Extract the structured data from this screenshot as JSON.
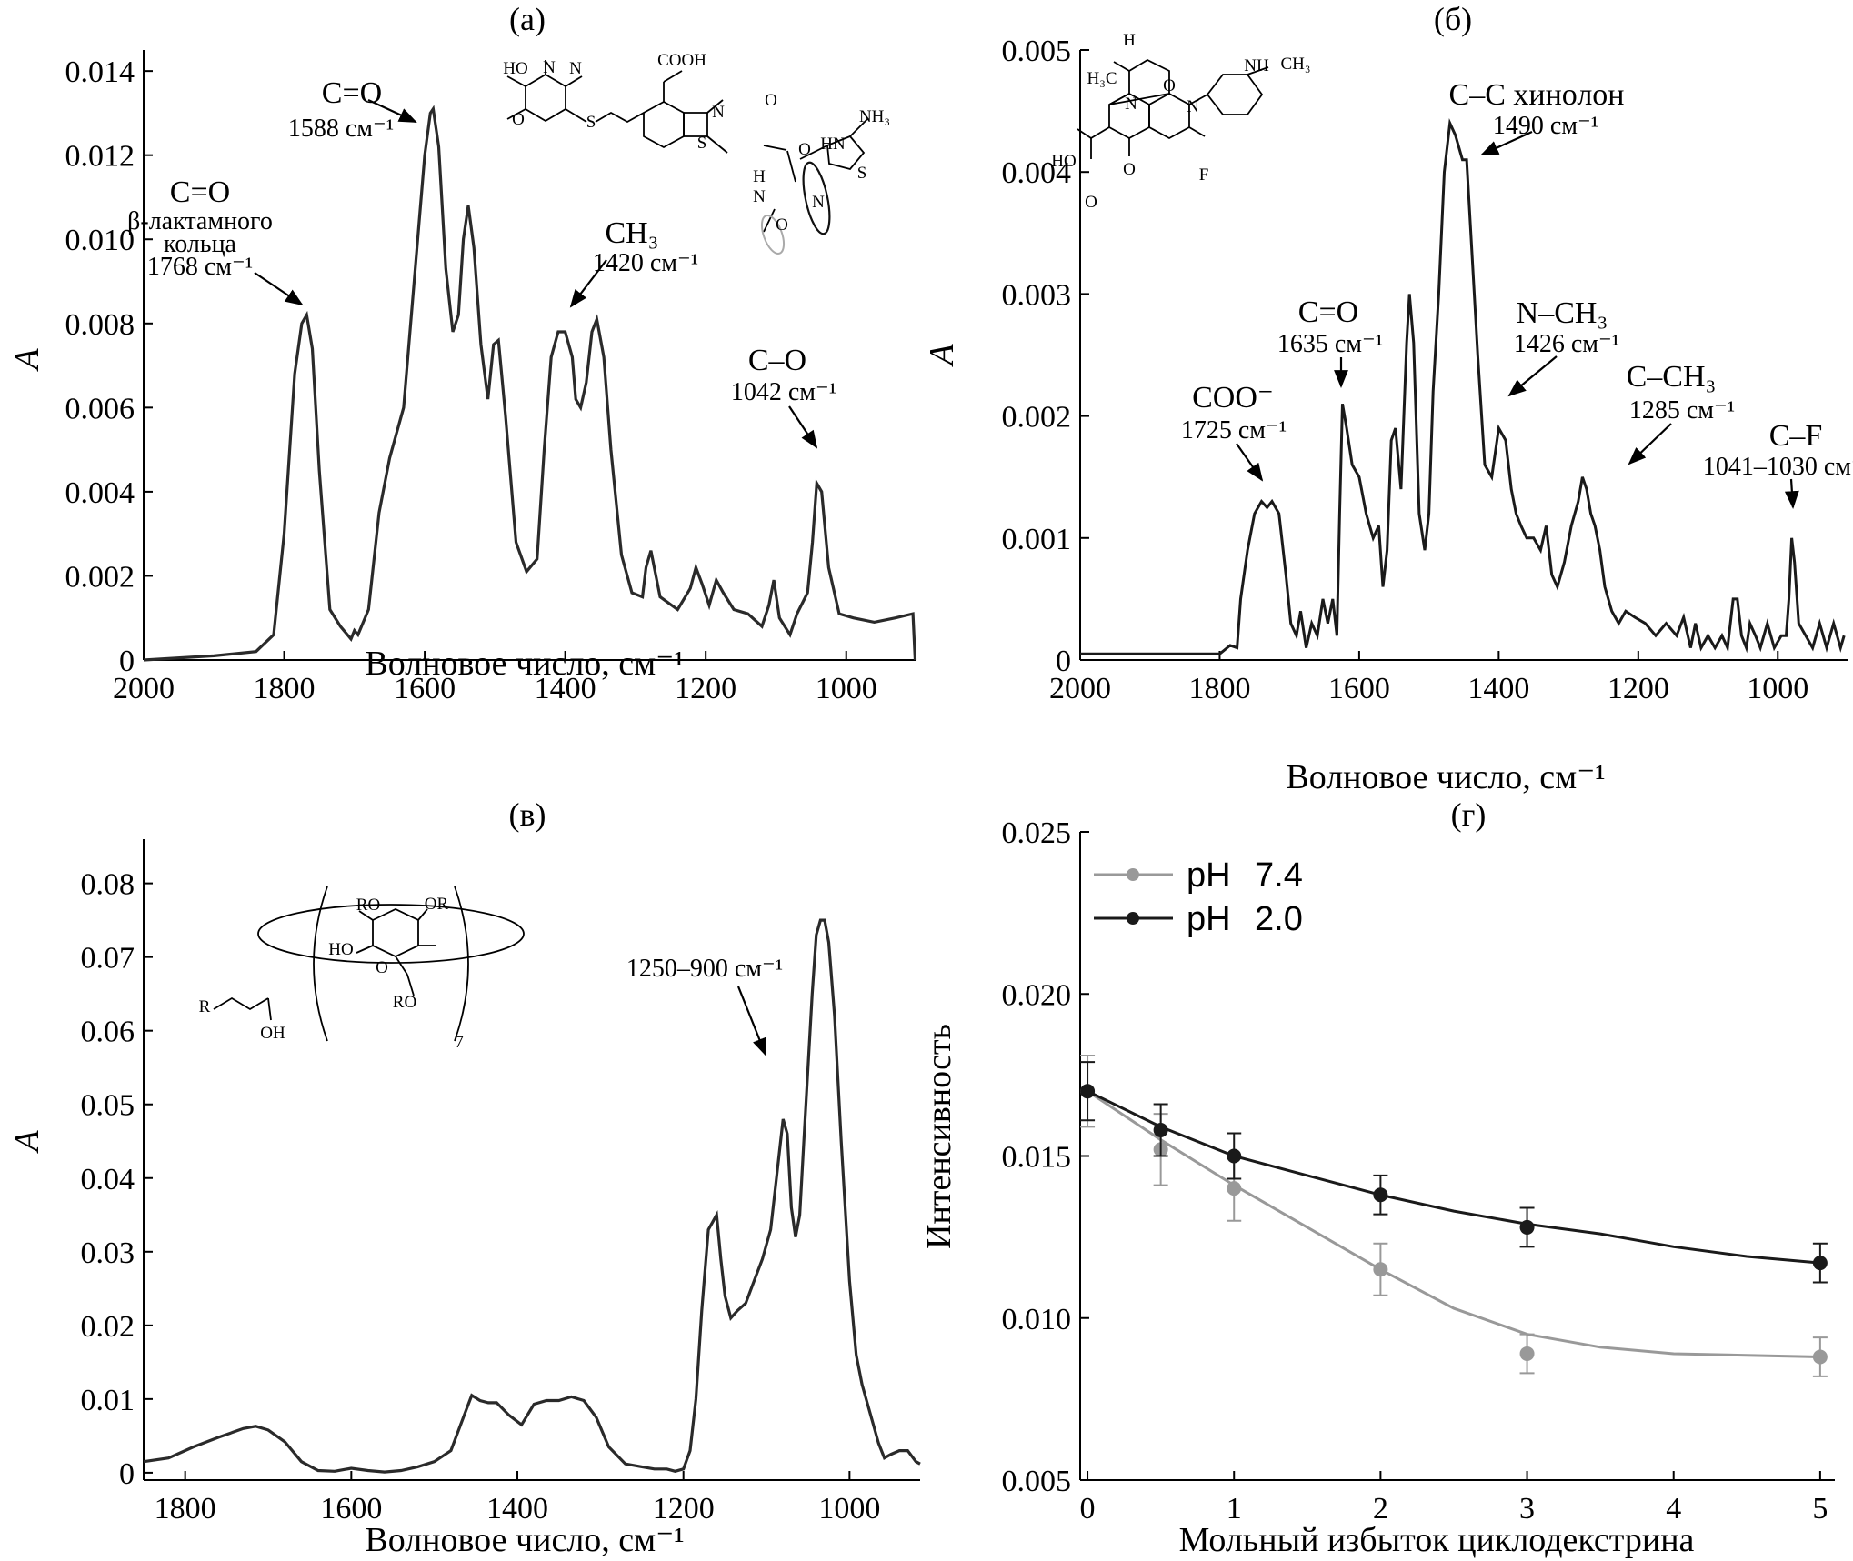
{
  "chart_data": [
    {
      "id": "a",
      "type": "line",
      "panel_label": "(а)",
      "xlabel": "Волновое число, см⁻¹",
      "ylabel": "A",
      "xlim": [
        2000,
        900
      ],
      "ylim": [
        0,
        0.0145
      ],
      "xticks": [
        2000,
        1800,
        1600,
        1400,
        1200,
        1000
      ],
      "yticks": [
        0,
        0.002,
        0.004,
        0.006,
        0.008,
        0.01,
        0.012,
        0.014
      ],
      "ytick_labels": [
        "0",
        "0.002",
        "0.004",
        "0.006",
        "0.008",
        "0.010",
        "0.012",
        "0.014"
      ],
      "series": [
        {
          "x": [
            2000,
            1900,
            1840,
            1815,
            1800,
            1785,
            1775,
            1768,
            1760,
            1750,
            1735,
            1720,
            1705,
            1700,
            1695,
            1680,
            1665,
            1650,
            1630,
            1615,
            1600,
            1592,
            1588,
            1580,
            1570,
            1560,
            1552,
            1545,
            1538,
            1530,
            1520,
            1510,
            1502,
            1495,
            1485,
            1470,
            1455,
            1440,
            1430,
            1420,
            1410,
            1400,
            1390,
            1385,
            1378,
            1370,
            1362,
            1355,
            1345,
            1335,
            1320,
            1305,
            1290,
            1285,
            1278,
            1265,
            1240,
            1222,
            1214,
            1205,
            1195,
            1185,
            1175,
            1160,
            1140,
            1120,
            1110,
            1103,
            1095,
            1080,
            1070,
            1055,
            1048,
            1042,
            1035,
            1025,
            1010,
            990,
            960,
            930,
            905,
            902
          ],
          "y": [
            0.0,
            0.0001,
            0.0002,
            0.0006,
            0.003,
            0.0068,
            0.008,
            0.0082,
            0.0074,
            0.0045,
            0.0012,
            0.0008,
            0.0005,
            0.0007,
            0.0006,
            0.0012,
            0.0035,
            0.0048,
            0.006,
            0.009,
            0.012,
            0.013,
            0.0131,
            0.0122,
            0.0093,
            0.0078,
            0.0082,
            0.01,
            0.0108,
            0.0098,
            0.0075,
            0.0062,
            0.0075,
            0.0076,
            0.0058,
            0.0028,
            0.0021,
            0.0024,
            0.005,
            0.0072,
            0.0078,
            0.0078,
            0.0072,
            0.0062,
            0.006,
            0.0066,
            0.0078,
            0.0081,
            0.0072,
            0.005,
            0.0025,
            0.0016,
            0.0015,
            0.0022,
            0.0026,
            0.0015,
            0.0012,
            0.0017,
            0.0022,
            0.0018,
            0.0013,
            0.0019,
            0.0016,
            0.0012,
            0.0011,
            0.0008,
            0.0013,
            0.0019,
            0.001,
            0.0006,
            0.0011,
            0.0016,
            0.0028,
            0.0042,
            0.004,
            0.0022,
            0.0011,
            0.001,
            0.0009,
            0.001,
            0.0011,
            0.0
          ]
        }
      ],
      "annotations": [
        {
          "lines": [
            "C=O",
            "β-лактамного",
            "кольца",
            "1768 см⁻¹"
          ]
        },
        {
          "lines": [
            "C=O",
            "1588 см⁻¹"
          ]
        },
        {
          "lines": [
            "CH₃",
            "1420 см⁻¹"
          ]
        },
        {
          "lines": [
            "C–O",
            "1042 см⁻¹"
          ]
        }
      ]
    },
    {
      "id": "b",
      "type": "line",
      "panel_label": "(б)",
      "xlabel": "Волновое число, см⁻¹",
      "ylabel": "A",
      "xlim": [
        2000,
        900
      ],
      "ylim": [
        0,
        0.005
      ],
      "xticks": [
        2000,
        1800,
        1600,
        1400,
        1200,
        1000
      ],
      "yticks": [
        0,
        0.001,
        0.002,
        0.003,
        0.004,
        0.005
      ],
      "ytick_labels": [
        "0",
        "0.001",
        "0.002",
        "0.003",
        "0.004",
        "0.005"
      ],
      "series": [
        {
          "x": [
            2000,
            1900,
            1800,
            1785,
            1775,
            1770,
            1760,
            1750,
            1740,
            1732,
            1725,
            1715,
            1705,
            1698,
            1690,
            1684,
            1676,
            1668,
            1660,
            1652,
            1645,
            1638,
            1632,
            1628,
            1624,
            1618,
            1610,
            1600,
            1590,
            1580,
            1572,
            1566,
            1560,
            1554,
            1548,
            1540,
            1532,
            1528,
            1522,
            1514,
            1506,
            1500,
            1494,
            1486,
            1478,
            1470,
            1462,
            1452,
            1446,
            1440,
            1430,
            1420,
            1410,
            1400,
            1390,
            1382,
            1375,
            1368,
            1360,
            1350,
            1340,
            1332,
            1324,
            1316,
            1306,
            1296,
            1286,
            1280,
            1274,
            1268,
            1262,
            1255,
            1248,
            1238,
            1228,
            1218,
            1205,
            1190,
            1175,
            1160,
            1145,
            1135,
            1125,
            1118,
            1110,
            1100,
            1090,
            1080,
            1072,
            1064,
            1058,
            1052,
            1045,
            1040,
            1032,
            1025,
            1015,
            1005,
            995,
            988,
            984,
            980,
            976,
            970,
            960,
            950,
            940,
            930,
            920,
            910,
            905
          ],
          "y": [
            5e-05,
            5e-05,
            5e-05,
            0.00012,
            0.0001,
            0.0005,
            0.0009,
            0.0012,
            0.0013,
            0.00125,
            0.0013,
            0.0012,
            0.0007,
            0.0003,
            0.0002,
            0.0004,
            0.0001,
            0.0003,
            0.0002,
            0.0005,
            0.0003,
            0.0005,
            0.0002,
            0.0012,
            0.0021,
            0.0019,
            0.0016,
            0.0015,
            0.0012,
            0.001,
            0.0011,
            0.0006,
            0.0009,
            0.0018,
            0.0019,
            0.0014,
            0.0026,
            0.003,
            0.0026,
            0.0012,
            0.0009,
            0.0012,
            0.0022,
            0.003,
            0.004,
            0.0044,
            0.0043,
            0.0041,
            0.0041,
            0.0035,
            0.0025,
            0.0016,
            0.0015,
            0.0019,
            0.0018,
            0.0014,
            0.0012,
            0.0011,
            0.001,
            0.001,
            0.0009,
            0.0011,
            0.0007,
            0.0006,
            0.0008,
            0.0011,
            0.0013,
            0.0015,
            0.0014,
            0.0012,
            0.0011,
            0.0009,
            0.0006,
            0.0004,
            0.0003,
            0.0004,
            0.00035,
            0.0003,
            0.0002,
            0.0003,
            0.0002,
            0.00035,
            0.0001,
            0.0003,
            0.0001,
            0.0002,
            0.0001,
            0.0002,
            0.0001,
            0.0005,
            0.0005,
            0.0002,
            0.0001,
            0.0003,
            0.0002,
            0.0001,
            0.0003,
            0.0001,
            0.0002,
            0.0002,
            0.0005,
            0.001,
            0.0008,
            0.0003,
            0.0002,
            0.0001,
            0.0003,
            0.0001,
            0.0003,
            0.0001,
            0.0002
          ]
        }
      ],
      "annotations": [
        {
          "lines": [
            "COO⁻",
            "1725 см⁻¹"
          ]
        },
        {
          "lines": [
            "C=O",
            "1635 см⁻¹"
          ]
        },
        {
          "lines": [
            "C–C хинолон",
            "1490 см⁻¹"
          ]
        },
        {
          "lines": [
            "N–CH₃",
            "1426 см⁻¹"
          ]
        },
        {
          "lines": [
            "C–CH₃",
            "1285 см⁻¹"
          ]
        },
        {
          "lines": [
            "C–F",
            "1041–1030 см⁻¹"
          ]
        }
      ]
    },
    {
      "id": "v",
      "type": "line",
      "panel_label": "(в)",
      "xlabel": "Волновое число, см⁻¹",
      "ylabel": "A",
      "xlim": [
        1850,
        915
      ],
      "ylim": [
        -0.001,
        0.086
      ],
      "xticks": [
        1800,
        1600,
        1400,
        1200,
        1000
      ],
      "yticks": [
        0,
        0.01,
        0.02,
        0.03,
        0.04,
        0.05,
        0.06,
        0.07,
        0.08
      ],
      "ytick_labels": [
        "0",
        "0.01",
        "0.02",
        "0.03",
        "0.04",
        "0.05",
        "0.06",
        "0.07",
        "0.08"
      ],
      "series": [
        {
          "x": [
            1850,
            1820,
            1790,
            1760,
            1730,
            1715,
            1700,
            1680,
            1660,
            1640,
            1620,
            1600,
            1580,
            1560,
            1540,
            1520,
            1500,
            1480,
            1465,
            1455,
            1445,
            1435,
            1425,
            1410,
            1395,
            1380,
            1365,
            1350,
            1335,
            1320,
            1305,
            1290,
            1270,
            1250,
            1235,
            1220,
            1210,
            1200,
            1192,
            1185,
            1178,
            1170,
            1160,
            1155,
            1150,
            1143,
            1135,
            1125,
            1115,
            1105,
            1095,
            1088,
            1080,
            1075,
            1070,
            1065,
            1060,
            1055,
            1050,
            1045,
            1040,
            1035,
            1030,
            1025,
            1018,
            1010,
            1000,
            992,
            985,
            975,
            965,
            958,
            950,
            940,
            930,
            920,
            915
          ],
          "y": [
            0.0015,
            0.002,
            0.0035,
            0.0048,
            0.006,
            0.0063,
            0.0058,
            0.0042,
            0.0015,
            0.0003,
            0.0002,
            0.0006,
            0.0003,
            0.0001,
            0.0003,
            0.0008,
            0.0015,
            0.003,
            0.0075,
            0.0105,
            0.0098,
            0.0095,
            0.0095,
            0.0078,
            0.0065,
            0.0093,
            0.0098,
            0.0098,
            0.0103,
            0.0098,
            0.0075,
            0.0035,
            0.0012,
            0.0008,
            0.0005,
            0.0005,
            0.0002,
            0.0005,
            0.003,
            0.01,
            0.022,
            0.033,
            0.035,
            0.029,
            0.024,
            0.021,
            0.022,
            0.023,
            0.026,
            0.029,
            0.033,
            0.04,
            0.048,
            0.046,
            0.036,
            0.032,
            0.035,
            0.045,
            0.055,
            0.065,
            0.073,
            0.075,
            0.075,
            0.072,
            0.062,
            0.045,
            0.026,
            0.016,
            0.012,
            0.008,
            0.004,
            0.002,
            0.0025,
            0.003,
            0.003,
            0.0015,
            0.0012
          ]
        }
      ],
      "annotations": [
        {
          "lines": [
            "1250–900 см⁻¹"
          ]
        }
      ]
    },
    {
      "id": "g",
      "type": "line",
      "panel_label": "(г)",
      "xlabel": "Мольный избыток циклодекстрина",
      "ylabel": "Интенсивность",
      "xlim": [
        -0.05,
        5.1
      ],
      "ylim": [
        0.005,
        0.025
      ],
      "xticks": [
        0,
        1,
        2,
        3,
        4,
        5
      ],
      "yticks": [
        0.005,
        0.01,
        0.015,
        0.02,
        0.025
      ],
      "ytick_labels": [
        "0.005",
        "0.010",
        "0.015",
        "0.020",
        "0.025"
      ],
      "legend_position": "top-left",
      "series": [
        {
          "name": "pH 7.4",
          "label": "pH",
          "value_label": "7.4",
          "color": "#999999",
          "x": [
            0,
            0.5,
            1,
            2,
            3,
            5
          ],
          "y": [
            0.017,
            0.0152,
            0.014,
            0.0115,
            0.0089,
            0.0088
          ],
          "yerr": [
            0.0011,
            0.0011,
            0.001,
            0.0008,
            0.0006,
            0.0006
          ],
          "fit": [
            [
              0,
              0.017
            ],
            [
              0.5,
              0.0155
            ],
            [
              1,
              0.0141
            ],
            [
              1.5,
              0.0128
            ],
            [
              2,
              0.0115
            ],
            [
              2.5,
              0.0103
            ],
            [
              3,
              0.0095
            ],
            [
              3.5,
              0.0091
            ],
            [
              4,
              0.0089
            ],
            [
              4.5,
              0.00885
            ],
            [
              5,
              0.0088
            ]
          ]
        },
        {
          "name": "pH 2.0",
          "label": "pH",
          "value_label": "2.0",
          "color": "#1a1a1a",
          "x": [
            0,
            0.5,
            1,
            2,
            3,
            5
          ],
          "y": [
            0.017,
            0.0158,
            0.015,
            0.0138,
            0.0128,
            0.0117
          ],
          "yerr": [
            0.0009,
            0.0008,
            0.0007,
            0.0006,
            0.0006,
            0.0006
          ],
          "fit": [
            [
              0,
              0.017
            ],
            [
              0.5,
              0.0159
            ],
            [
              1,
              0.015
            ],
            [
              1.5,
              0.0144
            ],
            [
              2,
              0.0138
            ],
            [
              2.5,
              0.0133
            ],
            [
              3,
              0.0129
            ],
            [
              3.5,
              0.0126
            ],
            [
              4,
              0.0122
            ],
            [
              4.5,
              0.0119
            ],
            [
              5,
              0.0117
            ]
          ]
        }
      ]
    }
  ]
}
